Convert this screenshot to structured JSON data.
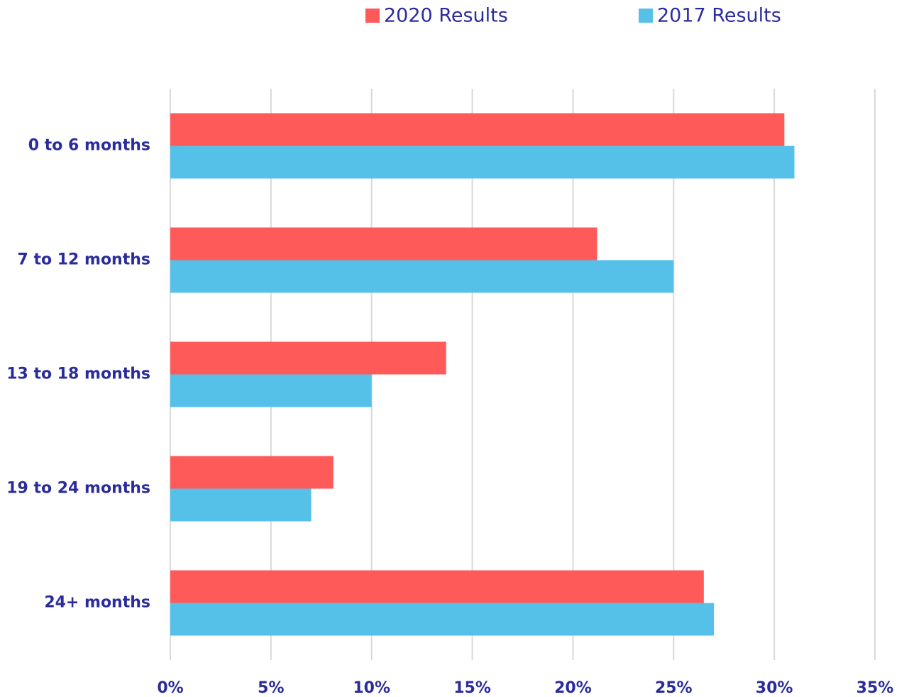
{
  "chart_data": {
    "type": "bar",
    "orientation": "horizontal",
    "categories": [
      "0 to 6 months",
      "7 to 12 months",
      "13 to 18 months",
      "19 to 24 months",
      "24+ months"
    ],
    "series": [
      {
        "name": "2020 Results",
        "color": "#ff5a5a",
        "values": [
          30.5,
          21.2,
          13.7,
          8.1,
          26.5
        ]
      },
      {
        "name": "2017 Results",
        "color": "#56c1e8",
        "values": [
          31.0,
          25.0,
          10.0,
          7.0,
          27.0
        ]
      }
    ],
    "xlim": [
      0,
      35
    ],
    "xticks": [
      {
        "value": 0,
        "label": "0%"
      },
      {
        "value": 5,
        "label": "5%"
      },
      {
        "value": 10,
        "label": "10%"
      },
      {
        "value": 15,
        "label": "15%"
      },
      {
        "value": 20,
        "label": "20%"
      },
      {
        "value": 25,
        "label": "25%"
      },
      {
        "value": 30,
        "label": "30%"
      },
      {
        "value": 35,
        "label": "35%"
      }
    ],
    "grid": true,
    "legend": "top"
  }
}
